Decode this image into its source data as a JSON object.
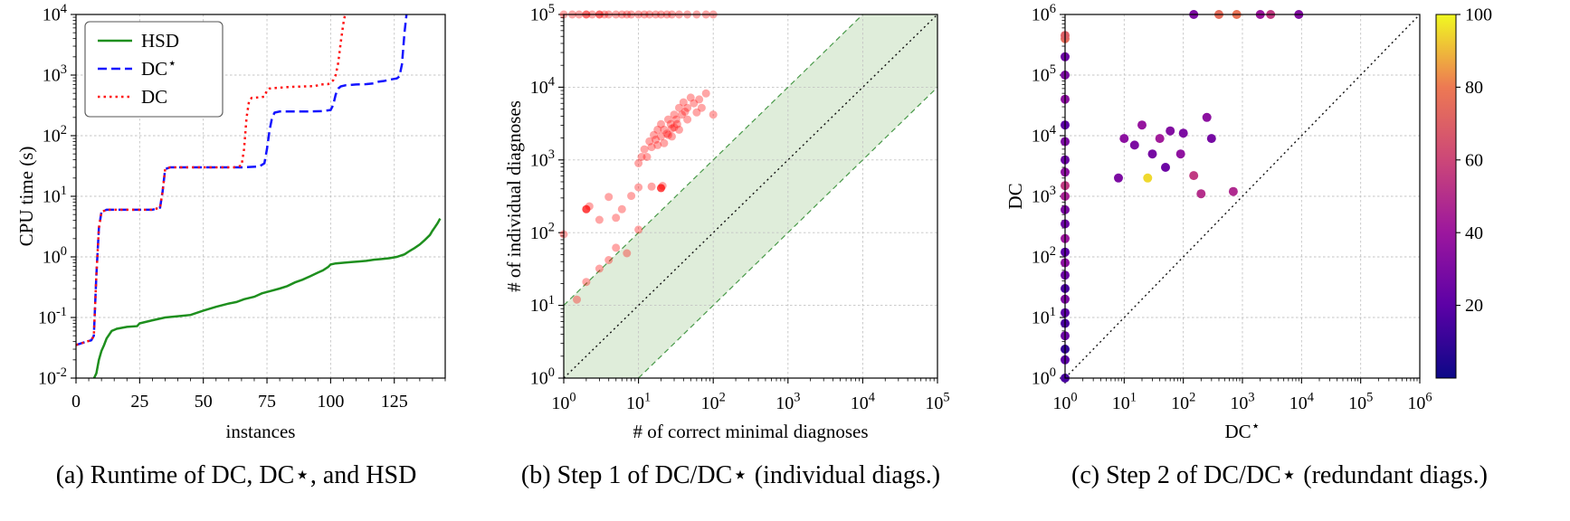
{
  "captions": {
    "a": "(a) Runtime of DC, DC⋆, and HSD",
    "b": "(b) Step 1 of DC/DC⋆ (individual diags.)",
    "c": "(c) Step 2 of DC/DC⋆ (redundant diags.)"
  },
  "chart_data": [
    {
      "id": "a",
      "type": "line",
      "xlabel": "instances",
      "ylabel": "CPU time (s)",
      "xlim": [
        0,
        145
      ],
      "xticks": [
        0,
        25,
        50,
        75,
        100,
        125
      ],
      "xminor_step": 5,
      "ylog": true,
      "ylim_exp": [
        -2,
        4
      ],
      "grid": true,
      "legend_position": "upper-left",
      "series": [
        {
          "name": "HSD",
          "color": "#1e8f1e",
          "style": "solid",
          "points": [
            [
              6,
              0.008
            ],
            [
              8,
              0.012
            ],
            [
              9,
              0.02
            ],
            [
              10,
              0.028
            ],
            [
              11,
              0.035
            ],
            [
              12,
              0.045
            ],
            [
              14,
              0.06
            ],
            [
              16,
              0.065
            ],
            [
              20,
              0.07
            ],
            [
              24,
              0.072
            ],
            [
              25,
              0.08
            ],
            [
              30,
              0.09
            ],
            [
              35,
              0.1
            ],
            [
              40,
              0.105
            ],
            [
              45,
              0.11
            ],
            [
              50,
              0.13
            ],
            [
              55,
              0.15
            ],
            [
              60,
              0.17
            ],
            [
              63,
              0.18
            ],
            [
              66,
              0.2
            ],
            [
              70,
              0.22
            ],
            [
              73,
              0.25
            ],
            [
              76,
              0.27
            ],
            [
              80,
              0.3
            ],
            [
              83,
              0.33
            ],
            [
              86,
              0.38
            ],
            [
              89,
              0.42
            ],
            [
              92,
              0.48
            ],
            [
              95,
              0.55
            ],
            [
              97,
              0.6
            ],
            [
              99,
              0.68
            ],
            [
              100,
              0.75
            ],
            [
              102,
              0.78
            ],
            [
              105,
              0.8
            ],
            [
              108,
              0.82
            ],
            [
              111,
              0.84
            ],
            [
              114,
              0.86
            ],
            [
              117,
              0.9
            ],
            [
              120,
              0.92
            ],
            [
              123,
              0.95
            ],
            [
              126,
              1.0
            ],
            [
              129,
              1.1
            ],
            [
              131,
              1.25
            ],
            [
              133,
              1.4
            ],
            [
              135,
              1.6
            ],
            [
              137,
              1.9
            ],
            [
              139,
              2.3
            ],
            [
              140,
              2.7
            ],
            [
              141,
              3.1
            ],
            [
              142,
              3.6
            ],
            [
              143,
              4.3
            ]
          ]
        },
        {
          "name": "DC⋆",
          "color": "#1414ff",
          "style": "dashed",
          "points": [
            [
              0,
              0.035
            ],
            [
              4,
              0.04
            ],
            [
              6,
              0.042
            ],
            [
              7,
              0.05
            ],
            [
              8,
              0.5
            ],
            [
              9,
              3
            ],
            [
              10,
              5.5
            ],
            [
              12,
              6
            ],
            [
              20,
              6
            ],
            [
              30,
              6
            ],
            [
              33,
              6.5
            ],
            [
              34,
              12
            ],
            [
              35,
              28
            ],
            [
              37,
              30
            ],
            [
              50,
              30
            ],
            [
              65,
              30
            ],
            [
              72,
              31
            ],
            [
              74,
              35
            ],
            [
              75,
              60
            ],
            [
              76,
              120
            ],
            [
              77,
              200
            ],
            [
              78,
              240
            ],
            [
              80,
              250
            ],
            [
              90,
              250
            ],
            [
              97,
              255
            ],
            [
              100,
              265
            ],
            [
              101,
              320
            ],
            [
              102,
              480
            ],
            [
              103,
              600
            ],
            [
              104,
              650
            ],
            [
              106,
              680
            ],
            [
              110,
              700
            ],
            [
              114,
              710
            ],
            [
              117,
              730
            ],
            [
              119,
              780
            ],
            [
              121,
              800
            ],
            [
              124,
              850
            ],
            [
              126,
              880
            ],
            [
              127,
              950
            ],
            [
              128,
              1500
            ],
            [
              129,
              5000
            ],
            [
              130,
              12000
            ]
          ]
        },
        {
          "name": "DC",
          "color": "#ff1414",
          "style": "dotted",
          "points": [
            [
              0,
              0.035
            ],
            [
              4,
              0.04
            ],
            [
              6,
              0.042
            ],
            [
              7,
              0.05
            ],
            [
              8,
              0.5
            ],
            [
              9,
              3
            ],
            [
              10,
              5.5
            ],
            [
              12,
              6
            ],
            [
              20,
              6
            ],
            [
              30,
              6
            ],
            [
              33,
              6.5
            ],
            [
              34,
              12
            ],
            [
              35,
              28
            ],
            [
              37,
              30
            ],
            [
              50,
              30
            ],
            [
              62,
              30
            ],
            [
              65,
              32
            ],
            [
              66,
              60
            ],
            [
              67,
              200
            ],
            [
              68,
              380
            ],
            [
              69,
              420
            ],
            [
              72,
              430
            ],
            [
              74,
              440
            ],
            [
              75,
              560
            ],
            [
              76,
              600
            ],
            [
              80,
              620
            ],
            [
              85,
              640
            ],
            [
              90,
              650
            ],
            [
              94,
              660
            ],
            [
              96,
              700
            ],
            [
              99,
              710
            ],
            [
              100,
              750
            ],
            [
              101,
              820
            ],
            [
              102,
              1000
            ],
            [
              103,
              1600
            ],
            [
              104,
              3500
            ],
            [
              105,
              7000
            ],
            [
              106,
              12000
            ]
          ]
        }
      ]
    },
    {
      "id": "b",
      "type": "scatter",
      "xlabel": "# of correct minimal diagnoses",
      "ylabel": "# of individual diagnoses",
      "xlim_exp": [
        0,
        5
      ],
      "ylim_exp": [
        0,
        5
      ],
      "grid": true,
      "diagonal": true,
      "marker_color": "#ff0000",
      "marker_alpha": 0.35,
      "marker_radius": 4.5,
      "band": {
        "decades": 1,
        "fill": "#d9ead3",
        "fill_opacity": 0.85,
        "edge_color": "#4a9a4a"
      },
      "points": [
        [
          1,
          100000
        ],
        [
          1.3,
          100000
        ],
        [
          1.6,
          100000
        ],
        [
          2,
          100000
        ],
        [
          2,
          100000
        ],
        [
          2.4,
          100000
        ],
        [
          3,
          100000
        ],
        [
          3,
          100000
        ],
        [
          3.5,
          100000
        ],
        [
          4,
          100000
        ],
        [
          5,
          100000
        ],
        [
          6,
          100000
        ],
        [
          7,
          100000
        ],
        [
          8,
          100000
        ],
        [
          10,
          100000
        ],
        [
          12,
          100000
        ],
        [
          14,
          100000
        ],
        [
          17,
          100000
        ],
        [
          20,
          100000
        ],
        [
          24,
          100000
        ],
        [
          28,
          100000
        ],
        [
          35,
          100000
        ],
        [
          45,
          100000
        ],
        [
          60,
          100000
        ],
        [
          80,
          100000
        ],
        [
          100,
          100000
        ],
        [
          10,
          900
        ],
        [
          11,
          1100
        ],
        [
          12,
          1400
        ],
        [
          13,
          1100
        ],
        [
          14,
          1800
        ],
        [
          15,
          1500
        ],
        [
          16,
          2200
        ],
        [
          17,
          1900
        ],
        [
          18,
          2600
        ],
        [
          20,
          2100
        ],
        [
          20,
          3100
        ],
        [
          22,
          2600
        ],
        [
          24,
          2300
        ],
        [
          25,
          3600
        ],
        [
          27,
          3100
        ],
        [
          28,
          2700
        ],
        [
          30,
          4200
        ],
        [
          32,
          3600
        ],
        [
          33,
          3100
        ],
        [
          35,
          5200
        ],
        [
          38,
          4200
        ],
        [
          40,
          6200
        ],
        [
          42,
          4600
        ],
        [
          45,
          5200
        ],
        [
          50,
          7200
        ],
        [
          55,
          6000
        ],
        [
          60,
          4500
        ],
        [
          70,
          5200
        ],
        [
          80,
          8200
        ],
        [
          100,
          4200
        ],
        [
          35,
          2600
        ],
        [
          28,
          2100
        ],
        [
          22,
          1700
        ],
        [
          45,
          3600
        ],
        [
          65,
          6800
        ],
        [
          30,
          2800
        ],
        [
          25,
          2200
        ],
        [
          18,
          1600
        ],
        [
          1,
          95
        ],
        [
          2,
          210
        ],
        [
          2,
          210
        ],
        [
          2,
          210
        ],
        [
          2.2,
          230
        ],
        [
          3,
          150
        ],
        [
          4,
          310
        ],
        [
          5,
          160
        ],
        [
          8,
          320
        ],
        [
          10,
          420
        ],
        [
          15,
          430
        ],
        [
          20,
          410
        ],
        [
          20,
          410
        ],
        [
          20,
          410
        ],
        [
          21,
          440
        ],
        [
          10,
          110
        ],
        [
          6,
          210
        ],
        [
          3,
          32
        ],
        [
          4,
          42
        ],
        [
          5,
          62
        ],
        [
          7,
          52
        ],
        [
          2,
          21
        ],
        [
          1.5,
          12
        ]
      ]
    },
    {
      "id": "c",
      "type": "scatter",
      "xlabel": "DC⋆",
      "ylabel": "DC",
      "xlim_exp": [
        0,
        6
      ],
      "ylim_exp": [
        0,
        6
      ],
      "grid": true,
      "diagonal": true,
      "marker_radius": 5,
      "colorbar": {
        "min": 0,
        "max": 100,
        "ticks": [
          20,
          40,
          60,
          80,
          100
        ],
        "stops": [
          [
            0,
            "#0d0887"
          ],
          [
            0.2,
            "#5c01a6"
          ],
          [
            0.4,
            "#9c179e"
          ],
          [
            0.6,
            "#cc4778"
          ],
          [
            0.8,
            "#ed7953"
          ],
          [
            1,
            "#f0f921"
          ]
        ]
      },
      "points": [
        [
          1,
          1,
          15
        ],
        [
          1,
          2,
          20
        ],
        [
          1,
          3,
          10
        ],
        [
          1,
          5,
          25
        ],
        [
          1,
          8,
          15
        ],
        [
          1,
          12,
          20
        ],
        [
          1,
          20,
          30
        ],
        [
          1,
          30,
          15
        ],
        [
          1,
          50,
          25
        ],
        [
          1,
          80,
          35
        ],
        [
          1,
          120,
          20
        ],
        [
          1,
          200,
          40
        ],
        [
          1,
          350,
          25
        ],
        [
          1,
          600,
          30
        ],
        [
          1,
          1000,
          45
        ],
        [
          1,
          1500,
          55
        ],
        [
          1,
          2500,
          35
        ],
        [
          1,
          4000,
          25
        ],
        [
          1,
          8000,
          30
        ],
        [
          1,
          15000,
          20
        ],
        [
          1,
          40000,
          35
        ],
        [
          1,
          100000,
          30
        ],
        [
          1,
          200000,
          25
        ],
        [
          1,
          400000,
          75
        ],
        [
          1,
          450000,
          70
        ],
        [
          8,
          2000,
          30
        ],
        [
          10,
          9000,
          35
        ],
        [
          15,
          7000,
          30
        ],
        [
          20,
          15000,
          38
        ],
        [
          25,
          2000,
          95
        ],
        [
          30,
          5000,
          28
        ],
        [
          40,
          9000,
          42
        ],
        [
          50,
          3000,
          25
        ],
        [
          60,
          12000,
          32
        ],
        [
          90,
          5000,
          36
        ],
        [
          100,
          11000,
          30
        ],
        [
          150,
          2200,
          55
        ],
        [
          200,
          1100,
          50
        ],
        [
          250,
          20000,
          35
        ],
        [
          300,
          9000,
          28
        ],
        [
          700,
          1200,
          48
        ],
        [
          150,
          1000000,
          30
        ],
        [
          400,
          1000000,
          75
        ],
        [
          800,
          1000000,
          78
        ],
        [
          2000,
          1000000,
          40
        ],
        [
          3000,
          1000000,
          55
        ],
        [
          9000,
          1000000,
          32
        ]
      ]
    }
  ]
}
